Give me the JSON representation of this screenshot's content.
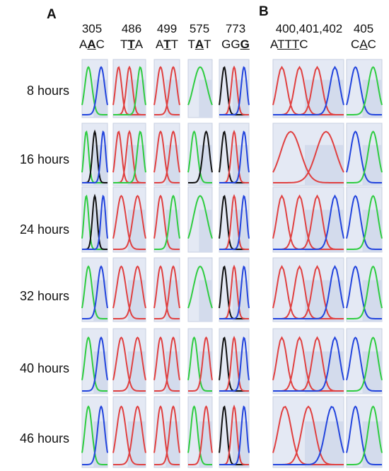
{
  "panels": {
    "a": "A",
    "b": "B"
  },
  "columns": [
    {
      "position": "305",
      "seq": [
        {
          "t": "A",
          "s": "n"
        },
        {
          "t": "A",
          "s": "b"
        },
        {
          "t": "C",
          "s": "n"
        }
      ]
    },
    {
      "position": "486",
      "seq": [
        {
          "t": "T",
          "s": "n"
        },
        {
          "t": "T",
          "s": "b"
        },
        {
          "t": "A",
          "s": "n"
        }
      ]
    },
    {
      "position": "499",
      "seq": [
        {
          "t": "A",
          "s": "n"
        },
        {
          "t": "T",
          "s": "b"
        },
        {
          "t": "T",
          "s": "n"
        }
      ]
    },
    {
      "position": "575",
      "seq": [
        {
          "t": "T",
          "s": "n"
        },
        {
          "t": "A",
          "s": "b"
        },
        {
          "t": "T",
          "s": "n"
        }
      ]
    },
    {
      "position": "773",
      "seq": [
        {
          "t": "G",
          "s": "n"
        },
        {
          "t": "G",
          "s": "n"
        },
        {
          "t": "G",
          "s": "b"
        }
      ]
    },
    {
      "position": "400,401,402",
      "seq": [
        {
          "t": "A",
          "s": "n"
        },
        {
          "t": "T",
          "s": "u"
        },
        {
          "t": "T",
          "s": "u"
        },
        {
          "t": "T",
          "s": "u"
        },
        {
          "t": "C",
          "s": "n"
        }
      ]
    },
    {
      "position": "405",
      "seq": [
        {
          "t": "C",
          "s": "n"
        },
        {
          "t": "A",
          "s": "u"
        },
        {
          "t": "C",
          "s": "n"
        }
      ]
    }
  ],
  "rows": [
    "8 hours",
    "16 hours",
    "24 hours",
    "32 hours",
    "40 hours",
    "46 hours"
  ],
  "trace_colors": {
    "A": "#2ecc40",
    "C": "#2244dd",
    "G": "#111111",
    "T": "#e04040"
  },
  "cell_peaks": [
    [
      [
        "A",
        "C"
      ],
      [
        "T",
        "T",
        "A"
      ],
      [
        "T",
        "T"
      ],
      [
        "A"
      ],
      [
        "G",
        "T",
        "C"
      ],
      [
        "T",
        "T",
        "T",
        "C"
      ],
      [
        "C",
        "A"
      ]
    ],
    [
      [
        "A",
        "G",
        "C"
      ],
      [
        "T",
        "T",
        "A"
      ],
      [
        "T",
        "T"
      ],
      [
        "A",
        "G"
      ],
      [
        "G",
        "T",
        "C"
      ],
      [
        "T",
        "T"
      ],
      [
        "C",
        "A"
      ]
    ],
    [
      [
        "A",
        "G",
        "C"
      ],
      [
        "T",
        "T"
      ],
      [
        "T",
        "A"
      ],
      [
        "A"
      ],
      [
        "G",
        "T",
        "C"
      ],
      [
        "T",
        "T",
        "T",
        "C"
      ],
      [
        "C",
        "A"
      ]
    ],
    [
      [
        "A",
        "C"
      ],
      [
        "T",
        "T"
      ],
      [
        "T",
        "T"
      ],
      [
        "A"
      ],
      [
        "G",
        "T",
        "C"
      ],
      [
        "T",
        "T",
        "T",
        "C"
      ],
      [
        "C",
        "A"
      ]
    ],
    [
      [
        "A",
        "C"
      ],
      [
        "T",
        "T"
      ],
      [
        "T",
        "T"
      ],
      [
        "A",
        "T"
      ],
      [
        "G",
        "T",
        "C"
      ],
      [
        "T",
        "T",
        "T",
        "C"
      ],
      [
        "C",
        "A"
      ]
    ],
    [
      [
        "A",
        "C"
      ],
      [
        "T",
        "T"
      ],
      [
        "T",
        "T"
      ],
      [
        "A",
        "T"
      ],
      [
        "G",
        "T",
        "C"
      ],
      [
        "T",
        "T",
        "C"
      ],
      [
        "C",
        "A"
      ]
    ]
  ]
}
